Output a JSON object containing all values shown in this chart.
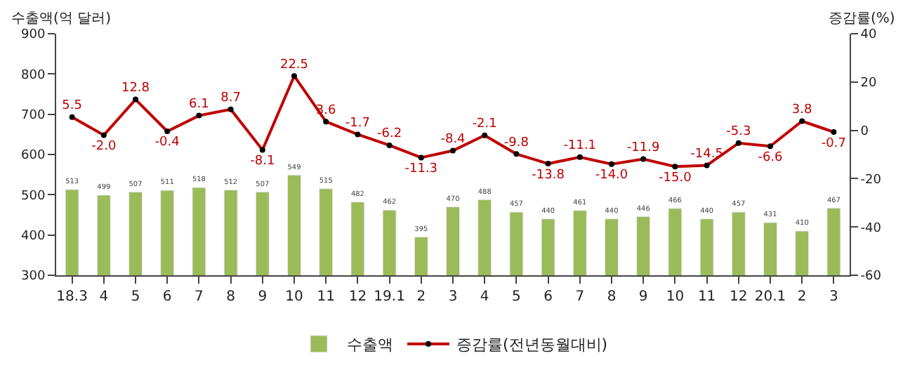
{
  "chart_data": {
    "type": "bar",
    "ylabel": "수출액(억 달러)",
    "y2label": "증감률(%)",
    "categories": [
      "18.3",
      "4",
      "5",
      "6",
      "7",
      "8",
      "9",
      "10",
      "11",
      "12",
      "19.1",
      "2",
      "3",
      "4",
      "5",
      "6",
      "7",
      "8",
      "9",
      "10",
      "11",
      "12",
      "20.1",
      "2",
      "3"
    ],
    "series": [
      {
        "name": "수출액",
        "color": "#9bbb59",
        "values": [
          513,
          499,
          507,
          511,
          518,
          512,
          507,
          549,
          515,
          482,
          462,
          395,
          470,
          488,
          457,
          440,
          461,
          440,
          446,
          466,
          440,
          457,
          431,
          410,
          467
        ],
        "value_labels": [
          "513",
          "499",
          "507",
          "511",
          "518",
          "512",
          "507",
          "549",
          "515",
          "482",
          "462",
          "395",
          "470",
          "488",
          "457",
          "440",
          "461",
          "440",
          "446",
          "466",
          "440",
          "457",
          "431",
          "410",
          "467"
        ]
      },
      {
        "name": "증감률(전년동월대비)",
        "type": "line",
        "axis": "y2",
        "color": "#c00000",
        "marker": "circle",
        "values": [
          5.5,
          -2.0,
          12.8,
          -0.4,
          6.1,
          8.7,
          -8.1,
          22.5,
          3.6,
          -1.7,
          -6.2,
          -11.3,
          -8.4,
          -2.1,
          -9.8,
          -13.8,
          -11.1,
          -14.0,
          -11.9,
          -15.0,
          -14.5,
          -5.3,
          -6.6,
          3.8,
          -0.7
        ],
        "value_labels": [
          "5.5",
          "-2.0",
          "12.8",
          "-0.4",
          "6.1",
          "8.7",
          "-8.1",
          "22.5",
          "3.6",
          "-1.7",
          "-6.2",
          "-11.3",
          "-8.4",
          "-2.1",
          "-9.8",
          "-13.8",
          "-11.1",
          "-14.0",
          "-11.9",
          "-15.0",
          "-14.5",
          "-5.3",
          "-6.6",
          "3.8",
          "-0.7"
        ]
      }
    ],
    "ylim": [
      300,
      900
    ],
    "yticks": [
      300,
      400,
      500,
      600,
      700,
      800,
      900
    ],
    "y2lim": [
      -60,
      40
    ],
    "y2ticks": [
      -60,
      -40,
      -20,
      0,
      20,
      40
    ],
    "legend": "bottom"
  }
}
